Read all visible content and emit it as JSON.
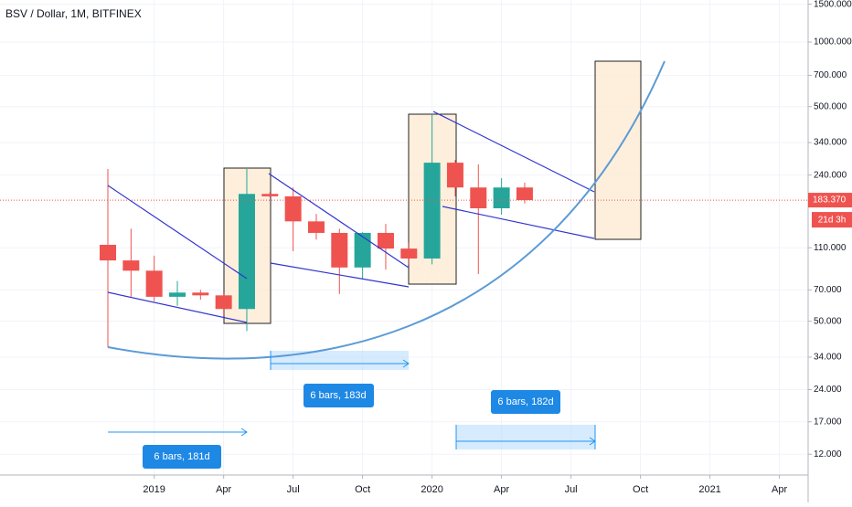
{
  "chart_data": {
    "type": "candlestick",
    "title": "BSV / Dollar, 1M, BITFINEX",
    "categories": [
      null,
      null,
      "2019",
      null,
      null,
      "Apr",
      null,
      null,
      "Jul",
      null,
      null,
      "Oct",
      null,
      null,
      "2020",
      null,
      null,
      "Apr",
      null,
      null,
      "Jul",
      null,
      null,
      "Oct",
      null,
      null,
      "2021",
      null,
      null,
      "Apr"
    ],
    "open": [
      113.5,
      96,
      86,
      65,
      68,
      66,
      57,
      196,
      191,
      146,
      129,
      89,
      129,
      109,
      98,
      274,
      210,
      168,
      210,
      null,
      null,
      null,
      null,
      null,
      null,
      null,
      null,
      null,
      null,
      null
    ],
    "high": [
      256,
      135,
      101,
      77,
      70,
      68,
      256,
      200,
      210,
      158,
      135,
      130,
      142,
      116,
      461,
      282,
      269,
      232,
      221,
      null,
      null,
      null,
      null,
      null,
      null,
      null,
      null,
      null,
      null,
      null
    ],
    "low": [
      37.8,
      65,
      62,
      59,
      63,
      53,
      45,
      189,
      106,
      120,
      67,
      79,
      87,
      92,
      92,
      191,
      83,
      157,
      177,
      null,
      null,
      null,
      null,
      null,
      null,
      null,
      null,
      null,
      null,
      null
    ],
    "close": [
      96,
      86,
      65,
      68,
      66,
      57,
      196,
      191,
      146,
      129,
      89,
      129,
      109,
      98,
      274,
      210,
      168,
      210,
      183.37,
      null,
      null,
      null,
      null,
      null,
      null,
      null,
      null,
      null,
      null,
      null
    ],
    "up_color": "#26a69a",
    "down_color": "#ef5350",
    "log_scale": true,
    "grid": true,
    "ylim": [
      9.6,
      1570
    ],
    "yticks": [
      {
        "value": 1500,
        "label": "1500.000"
      },
      {
        "value": 1000,
        "label": "1000.000"
      },
      {
        "value": 700,
        "label": "700.000"
      },
      {
        "value": 500,
        "label": "500.000"
      },
      {
        "value": 340,
        "label": "340.000"
      },
      {
        "value": 240,
        "label": "240.000"
      },
      {
        "value": 110,
        "label": "110.000"
      },
      {
        "value": 70,
        "label": "70.000"
      },
      {
        "value": 50,
        "label": "50.000"
      },
      {
        "value": 34,
        "label": "34.000"
      },
      {
        "value": 24,
        "label": "24.000"
      },
      {
        "value": 17,
        "label": "17.000"
      },
      {
        "value": 12,
        "label": "12.000"
      }
    ],
    "last_price": {
      "value": 183.37,
      "label": "183.370"
    },
    "countdown": "21d 3h",
    "annotations": [
      "6 bars, 181d",
      "6 bars, 183d",
      "6 bars, 182d"
    ]
  }
}
